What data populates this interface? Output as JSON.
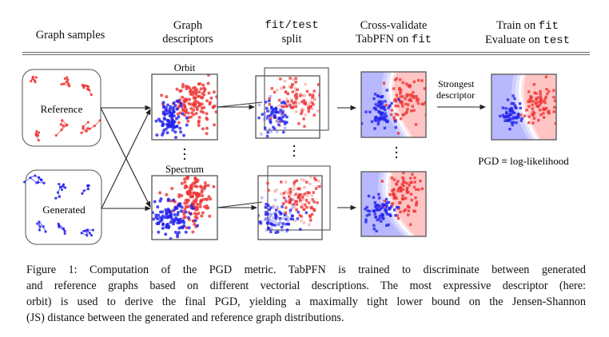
{
  "header": {
    "col1": "Graph samples",
    "col2_line1": "Graph",
    "col2_line2": "descriptors",
    "col3_line1_mono": "fit/test",
    "col3_line2": "split",
    "col4_line1": "Cross-validate",
    "col4_line2_pre": "TabPFN on ",
    "col4_line2_mono": "fit",
    "col5_line1_pre": "Train on ",
    "col5_line1_mono": "fit",
    "col5_line2_pre": "Evaluate on ",
    "col5_line2_mono": "test"
  },
  "samples": {
    "reference_label": "Reference",
    "generated_label": "Generated"
  },
  "descriptors": {
    "top_label": "Orbit",
    "bottom_label": "Spectrum"
  },
  "final": {
    "arrow_label_line1": "Strongest",
    "arrow_label_line2": "descriptor",
    "result_label": "PGD ≡ log-likelihood"
  },
  "colors": {
    "reference": "#ee3333",
    "generated": "#2222ee",
    "reference_region": "#ffc4c4",
    "generated_region": "#c4c4ff"
  },
  "caption": {
    "lines": [
      "Figure 1:  Computation of the PGD metric.  TabPFN is trained to discriminate between generated",
      "and reference graphs based on different vectorial descriptions. The most expressive descriptor (here:",
      "orbit) is used to derive the final PGD, yielding a maximally tight lower bound on the Jensen-Shannon",
      "(JS) distance between the generated and reference graph distributions."
    ]
  }
}
